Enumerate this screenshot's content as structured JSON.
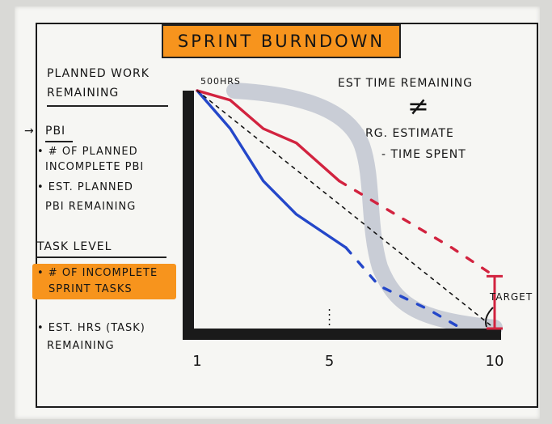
{
  "title": "SPRINT BURNDOWN",
  "left_panel": {
    "heading_1": "PLANNED WORK",
    "heading_2": "REMAINING",
    "arrow": "→",
    "pbi_label": "PBI",
    "pbi_item_1_line_1": "• # OF PLANNED",
    "pbi_item_1_line_2": "INCOMPLETE PBI",
    "pbi_item_2_line_1": "• EST. PLANNED",
    "pbi_item_2_line_2": "PBI REMAINING",
    "task_level_label": "TASK LEVEL",
    "task_item_1_line_1": "• # OF INCOMPLETE",
    "task_item_1_line_2": "SPRINT TASKS",
    "task_item_2_line_1": "• EST. HRS (TASK)",
    "task_item_2_line_2": "REMAINING"
  },
  "right_notes": {
    "line_1": "EST TIME REMAINING",
    "neq": "≠",
    "line_2": "ORG. ESTIMATE",
    "line_3": "- TIME SPENT"
  },
  "chart_labels": {
    "y_top": "500HRS",
    "target": "TARGET"
  },
  "axis_ticks": [
    "1",
    "5",
    "10"
  ],
  "colors": {
    "highlight": "#f7941d",
    "red_line": "#d2233f",
    "blue_line": "#2447c9",
    "shadow_curve": "#c9cdd6",
    "ink": "#151515"
  },
  "chart_data": {
    "type": "line",
    "x_ticks": [
      1,
      5,
      10
    ],
    "series": [
      {
        "color": "#2447c9",
        "style": "solid",
        "x": [
          1,
          2,
          3,
          4,
          5.5
        ],
        "y": [
          100,
          84,
          62,
          48,
          34
        ]
      },
      {
        "color": "#2447c9",
        "style": "dashed",
        "x": [
          5.5,
          6.5,
          8,
          9
        ],
        "y": [
          34,
          18,
          8,
          0
        ]
      },
      {
        "color": "#d2233f",
        "style": "solid",
        "x": [
          1,
          2,
          3,
          4,
          5.3
        ],
        "y": [
          100,
          96,
          84,
          78,
          62
        ]
      },
      {
        "color": "#d2233f",
        "style": "dashed",
        "x": [
          5.3,
          7,
          8.7,
          10
        ],
        "y": [
          62,
          48,
          34,
          22
        ]
      },
      {
        "color": "#151515",
        "style": "dashed",
        "x": [
          1,
          10
        ],
        "y": [
          100,
          0
        ]
      }
    ],
    "target_range": {
      "x": 10,
      "y_low": 0,
      "y_high": 22
    }
  }
}
